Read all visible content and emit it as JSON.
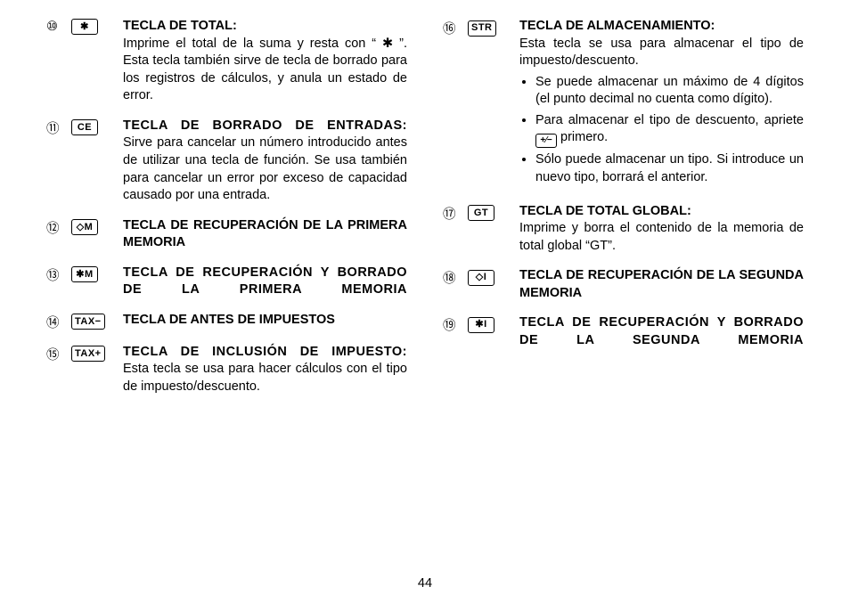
{
  "pageNumber": "44",
  "left": [
    {
      "num": "⑩",
      "keyLabel": "✱",
      "title": "TECLA DE TOTAL:",
      "titleSpread": false,
      "descHtml": "Imprime el total de la suma y resta con “ ✱ ”. Esta tecla también sirve de tecla de borrado para los registros de cálculos, y anula un estado de error."
    },
    {
      "num": "⑪",
      "keyLabel": "CE",
      "title": "TECLA DE BORRADO DE ENTRADAS:",
      "titleSpread": true,
      "descHtml": "Sirve para cancelar un número introducido antes de utilizar una tecla de función. Se usa también para cancelar un error por exceso de capacidad causado por una entrada."
    },
    {
      "num": "⑫",
      "keyLabel": "◇M",
      "title": "TECLA DE RECUPERACIÓN DE LA PRIMERA MEMORIA",
      "titleSpread": false
    },
    {
      "num": "⑬",
      "keyLabel": "✱M",
      "title": "TECLA DE RECUPERACIÓN Y BORRADO DE LA PRIMERA MEMORIA",
      "titleSpread": true
    },
    {
      "num": "⑭",
      "keyLabel": "TAX−",
      "title": "TECLA DE ANTES DE IMPUESTOS",
      "titleSpread": false
    },
    {
      "num": "⑮",
      "keyLabel": "TAX+",
      "title": "TECLA DE INCLUSIÓN DE IMPUESTO:",
      "titleSpread": true,
      "descHtml": "Esta tecla se usa para hacer cálculos con el tipo de impuesto/descuento."
    }
  ],
  "right": [
    {
      "num": "⑯",
      "keyLabel": "STR",
      "title": "TECLA DE ALMACENAMIENTO:",
      "titleSpread": false,
      "descHtml": "Esta tecla se usa para almacenar el tipo de impuesto/descuento.",
      "bullets": [
        "Se puede almacenar un máximo de 4 dígitos (el punto decimal no cuenta como dígito).",
        "Para almacenar el tipo de descuento, apriete <span class=\"inline-key\">+∕−</span> primero.",
        "Sólo puede almacenar un tipo. Si introduce un nuevo tipo, borrará el anterior."
      ]
    },
    {
      "num": "⑰",
      "keyLabel": "GT",
      "title": "TECLA DE TOTAL GLOBAL:",
      "titleSpread": false,
      "descHtml": "Imprime y borra el contenido de la memoria de total global “GT”."
    },
    {
      "num": "⑱",
      "keyLabel": "◇I",
      "title": "TECLA DE RECUPERACIÓN DE LA SEGUNDA MEMORIA",
      "titleSpread": false
    },
    {
      "num": "⑲",
      "keyLabel": "✱I",
      "title": "TECLA DE RECUPERACIÓN Y BORRADO DE LA SEGUNDA MEMORIA",
      "titleSpread": true
    }
  ]
}
